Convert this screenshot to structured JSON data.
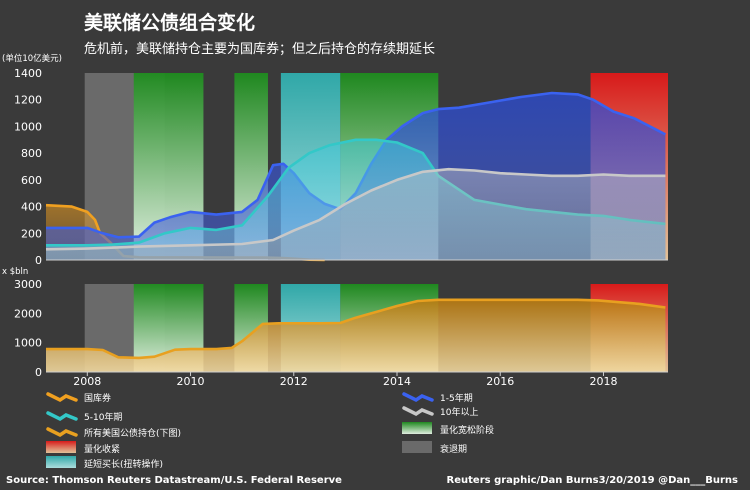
{
  "title": "美联储公债组合变化",
  "subtitle": "危机前，美联储持仓主要为国库券；但之后持仓的存续期延长",
  "source": "Source: Thomson Reuters Datastream/U.S. Federal Reserve",
  "credit": "Reuters graphic/Dan Burns3/20/2019 @Dan___Burns",
  "colors": {
    "background": "#3a3a3a",
    "bills": "#f0a020",
    "y1_5": "#3a62f0",
    "y5_10": "#33c8c8",
    "y10plus": "#c8c8c8",
    "total": "#e8a020",
    "qe": "#2e9e2e",
    "qt": "#e23a3a",
    "twist": "#7fd8d8",
    "recession": "#6e6e6e"
  },
  "legend": [
    {
      "key": "bills",
      "label": "国库券",
      "icon": "line-swatch"
    },
    {
      "key": "y1_5",
      "label": "1-5年期",
      "icon": "line-swatch"
    },
    {
      "key": "y5_10",
      "label": "5-10年期",
      "icon": "line-swatch"
    },
    {
      "key": "y10plus",
      "label": "10年以上",
      "icon": "line-swatch"
    },
    {
      "key": "total",
      "label": "所有美国公债持仓(下图)",
      "icon": "line-swatch"
    },
    {
      "key": "qe",
      "label": "量化宽松阶段",
      "icon": "gradient-swatch"
    },
    {
      "key": "qt",
      "label": "量化收紧",
      "icon": "gradient-swatch"
    },
    {
      "key": "recession",
      "label": "衰退期",
      "icon": "gradient-swatch"
    },
    {
      "key": "twist",
      "label": "延短买长(扭转操作)",
      "icon": "gradient-swatch"
    }
  ],
  "chart_data": [
    {
      "type": "line",
      "ylabel": "(单位10亿美元)",
      "ylim": [
        0,
        1400
      ],
      "yticks": [
        0,
        200,
        400,
        600,
        800,
        1000,
        1200,
        1400
      ],
      "xlim": [
        2007.2,
        2019.25
      ],
      "shading": {
        "recession": [
          [
            2007.95,
            2009.5
          ]
        ],
        "qe": [
          [
            2008.9,
            2010.25
          ],
          [
            2010.85,
            2011.5
          ],
          [
            2012.9,
            2014.8
          ]
        ],
        "twist": [
          [
            2011.75,
            2012.9
          ]
        ],
        "qt": [
          [
            2017.75,
            2019.25
          ]
        ]
      },
      "series": [
        {
          "name": "国库券",
          "key": "bills",
          "x": [
            2007.2,
            2007.7,
            2008.0,
            2008.15,
            2008.25,
            2008.45,
            2008.7,
            2009.0,
            2011.0,
            2011.45,
            2011.8,
            2012.0,
            2012.3,
            2012.6
          ],
          "y": [
            410,
            400,
            360,
            300,
            200,
            130,
            30,
            20,
            18,
            18,
            15,
            10,
            2,
            0
          ]
        },
        {
          "name": "1-5年期",
          "key": "y1_5",
          "x": [
            2007.2,
            2008.0,
            2008.3,
            2008.6,
            2009.0,
            2009.3,
            2009.6,
            2010.0,
            2010.5,
            2011.0,
            2011.3,
            2011.6,
            2011.8,
            2012.0,
            2012.3,
            2012.6,
            2012.9,
            2013.2,
            2013.5,
            2013.8,
            2014.1,
            2014.5,
            2014.8,
            2015.2,
            2015.8,
            2016.4,
            2017.0,
            2017.5,
            2017.8,
            2018.2,
            2018.6,
            2019.2
          ],
          "y": [
            240,
            240,
            200,
            170,
            175,
            280,
            320,
            360,
            340,
            360,
            450,
            710,
            720,
            650,
            500,
            420,
            380,
            500,
            720,
            900,
            1000,
            1100,
            1130,
            1140,
            1180,
            1220,
            1250,
            1240,
            1200,
            1110,
            1060,
            940
          ]
        },
        {
          "name": "5-10年期",
          "key": "y5_10",
          "x": [
            2007.2,
            2008.0,
            2008.5,
            2009.0,
            2009.5,
            2010.0,
            2010.5,
            2011.0,
            2011.5,
            2011.9,
            2012.3,
            2012.7,
            2013.2,
            2013.6,
            2014.0,
            2014.5,
            2014.8,
            2015.5,
            2016.5,
            2017.5,
            2018.0,
            2018.5,
            2019.2
          ],
          "y": [
            110,
            110,
            115,
            130,
            200,
            240,
            225,
            260,
            480,
            690,
            800,
            860,
            900,
            900,
            880,
            800,
            630,
            450,
            380,
            340,
            330,
            300,
            270
          ]
        },
        {
          "name": "10年以上",
          "key": "y10plus",
          "x": [
            2007.2,
            2008.0,
            2009.0,
            2010.0,
            2011.0,
            2011.6,
            2012.0,
            2012.5,
            2013.0,
            2013.5,
            2014.0,
            2014.5,
            2015.0,
            2015.5,
            2016.0,
            2016.5,
            2017.0,
            2017.5,
            2018.0,
            2018.5,
            2019.2
          ],
          "y": [
            80,
            85,
            100,
            110,
            120,
            150,
            220,
            300,
            420,
            520,
            600,
            660,
            680,
            670,
            650,
            640,
            630,
            630,
            640,
            630,
            630
          ]
        }
      ]
    },
    {
      "type": "line",
      "ylabel": "x $bln",
      "ylim": [
        0,
        3000
      ],
      "yticks": [
        0,
        1000,
        2000,
        3000
      ],
      "xlim": [
        2007.2,
        2019.25
      ],
      "xticks": [
        2008,
        2010,
        2012,
        2014,
        2016,
        2018
      ],
      "shading": {
        "recession": [
          [
            2007.95,
            2009.5
          ]
        ],
        "qe": [
          [
            2008.9,
            2010.25
          ],
          [
            2010.85,
            2011.5
          ],
          [
            2012.9,
            2014.8
          ]
        ],
        "twist": [
          [
            2011.75,
            2012.9
          ]
        ],
        "qt": [
          [
            2017.75,
            2019.25
          ]
        ]
      },
      "series": [
        {
          "name": "所有美国公债持仓(下图)",
          "key": "total",
          "x": [
            2007.2,
            2008.0,
            2008.3,
            2008.6,
            2009.0,
            2009.3,
            2009.7,
            2010.0,
            2010.5,
            2010.8,
            2011.0,
            2011.4,
            2011.7,
            2012.0,
            2012.5,
            2012.9,
            2013.2,
            2013.6,
            2014.0,
            2014.4,
            2014.8,
            2015.5,
            2016.5,
            2017.5,
            2017.9,
            2018.3,
            2018.7,
            2019.2
          ],
          "y": [
            780,
            780,
            750,
            500,
            480,
            520,
            760,
            780,
            780,
            820,
            1050,
            1640,
            1660,
            1660,
            1660,
            1670,
            1850,
            2050,
            2250,
            2420,
            2460,
            2460,
            2460,
            2460,
            2440,
            2380,
            2320,
            2200
          ]
        }
      ]
    }
  ]
}
